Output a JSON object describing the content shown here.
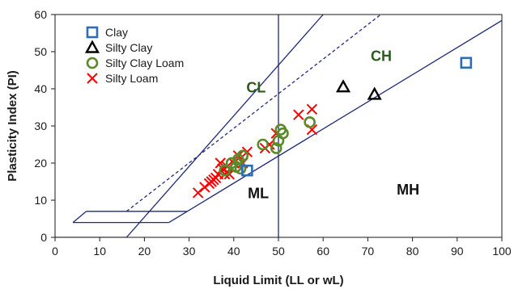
{
  "chart_data": {
    "type": "scatter",
    "xlabel": "Liquid Limit (LL or wL)",
    "ylabel": "Plasticity Index (PI)",
    "xlim": [
      0,
      100
    ],
    "ylim": [
      0,
      60
    ],
    "xticks": [
      0,
      10,
      20,
      30,
      40,
      50,
      60,
      70,
      80,
      90,
      100
    ],
    "yticks": [
      0,
      10,
      20,
      30,
      40,
      50,
      60
    ],
    "grid": false,
    "legend_position": "top-left",
    "series": [
      {
        "name": "Clay",
        "marker": "square",
        "color": "#2e6db4",
        "points": [
          [
            43,
            18
          ],
          [
            92,
            47
          ]
        ]
      },
      {
        "name": "Silty Clay",
        "marker": "triangle",
        "color": "#000000",
        "points": [
          [
            64.5,
            40.5
          ],
          [
            71.5,
            38.5
          ]
        ]
      },
      {
        "name": "Silty Clay Loam",
        "marker": "circle",
        "color": "#5a8a2a",
        "points": [
          [
            38,
            18
          ],
          [
            39.5,
            20
          ],
          [
            40.5,
            19
          ],
          [
            41,
            21
          ],
          [
            41.5,
            18.5
          ],
          [
            42,
            22
          ],
          [
            46.5,
            25
          ],
          [
            49.5,
            24
          ],
          [
            50,
            26
          ],
          [
            50.5,
            29
          ],
          [
            51,
            28
          ],
          [
            57,
            31
          ]
        ]
      },
      {
        "name": "Silty Loam",
        "marker": "cross",
        "color": "#ff0000",
        "points": [
          [
            32,
            12
          ],
          [
            33.5,
            13.5
          ],
          [
            34.5,
            14.5
          ],
          [
            35,
            15
          ],
          [
            35.5,
            15.5
          ],
          [
            36,
            16
          ],
          [
            36.5,
            17
          ],
          [
            37,
            20
          ],
          [
            37.5,
            18.5
          ],
          [
            38,
            17
          ],
          [
            38.5,
            19
          ],
          [
            39,
            17
          ],
          [
            40,
            20
          ],
          [
            41,
            22
          ],
          [
            42,
            20
          ],
          [
            43,
            23
          ],
          [
            47,
            24
          ],
          [
            48,
            25
          ],
          [
            49.5,
            28
          ],
          [
            54.5,
            33
          ],
          [
            57.5,
            34.5
          ],
          [
            57.5,
            29
          ]
        ]
      }
    ],
    "lines": [
      {
        "id": "a-line",
        "points": [
          [
            25.5,
            4
          ],
          [
            100,
            58.4
          ]
        ]
      },
      {
        "id": "u-line",
        "points": [
          [
            0,
            0
          ],
          [
            16,
            0
          ],
          [
            60,
            60
          ]
        ],
        "dashed": false
      },
      {
        "id": "dashed-line",
        "points": [
          [
            16,
            7
          ],
          [
            72.9,
            60
          ]
        ],
        "dashed": true
      },
      {
        "id": "ll50-line",
        "points": [
          [
            50,
            0
          ],
          [
            50,
            60
          ]
        ]
      },
      {
        "id": "cl-ml-box-top",
        "points": [
          [
            7,
            7
          ],
          [
            29.5,
            7
          ]
        ]
      },
      {
        "id": "cl-ml-box-bottom",
        "points": [
          [
            4,
            4
          ],
          [
            25.5,
            4
          ]
        ]
      },
      {
        "id": "cl-ml-box-left",
        "points": [
          [
            4,
            4
          ],
          [
            7,
            7
          ]
        ]
      }
    ],
    "regions": [
      {
        "label": "CL",
        "x": 45,
        "y": 39,
        "color": "#2d5a1e"
      },
      {
        "label": "CH",
        "x": 73,
        "y": 47.5,
        "color": "#2d5a1e"
      },
      {
        "label": "ML",
        "x": 45.5,
        "y": 10.5,
        "color": "#111111"
      },
      {
        "label": "MH",
        "x": 79,
        "y": 11.5,
        "color": "#111111"
      }
    ],
    "line_color": "#1f2a7a"
  }
}
